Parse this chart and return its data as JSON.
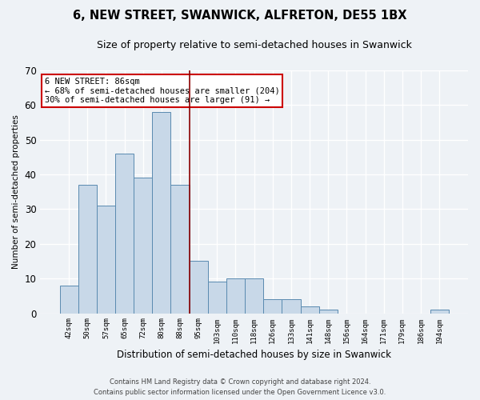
{
  "title": "6, NEW STREET, SWANWICK, ALFRETON, DE55 1BX",
  "subtitle": "Size of property relative to semi-detached houses in Swanwick",
  "xlabel": "Distribution of semi-detached houses by size in Swanwick",
  "ylabel": "Number of semi-detached properties",
  "categories": [
    "42sqm",
    "50sqm",
    "57sqm",
    "65sqm",
    "72sqm",
    "80sqm",
    "88sqm",
    "95sqm",
    "103sqm",
    "110sqm",
    "118sqm",
    "126sqm",
    "133sqm",
    "141sqm",
    "148sqm",
    "156sqm",
    "164sqm",
    "171sqm",
    "179sqm",
    "186sqm",
    "194sqm"
  ],
  "values": [
    8,
    37,
    31,
    46,
    39,
    58,
    37,
    15,
    9,
    10,
    10,
    4,
    4,
    2,
    1,
    0,
    0,
    0,
    0,
    0,
    1
  ],
  "bar_color": "#c8d8e8",
  "bar_edge_color": "#5a8ab0",
  "highlight_index": 6,
  "vline_color": "#8b0000",
  "ylim": [
    0,
    70
  ],
  "yticks": [
    0,
    10,
    20,
    30,
    40,
    50,
    60,
    70
  ],
  "annotation_title": "6 NEW STREET: 86sqm",
  "annotation_line1": "← 68% of semi-detached houses are smaller (204)",
  "annotation_line2": "30% of semi-detached houses are larger (91) →",
  "annotation_box_color": "#ffffff",
  "annotation_box_edge": "#cc0000",
  "footer_line1": "Contains HM Land Registry data © Crown copyright and database right 2024.",
  "footer_line2": "Contains public sector information licensed under the Open Government Licence v3.0.",
  "background_color": "#eef2f6",
  "plot_background": "#eef2f6",
  "grid_color": "#ffffff",
  "title_fontsize": 10.5,
  "subtitle_fontsize": 9
}
